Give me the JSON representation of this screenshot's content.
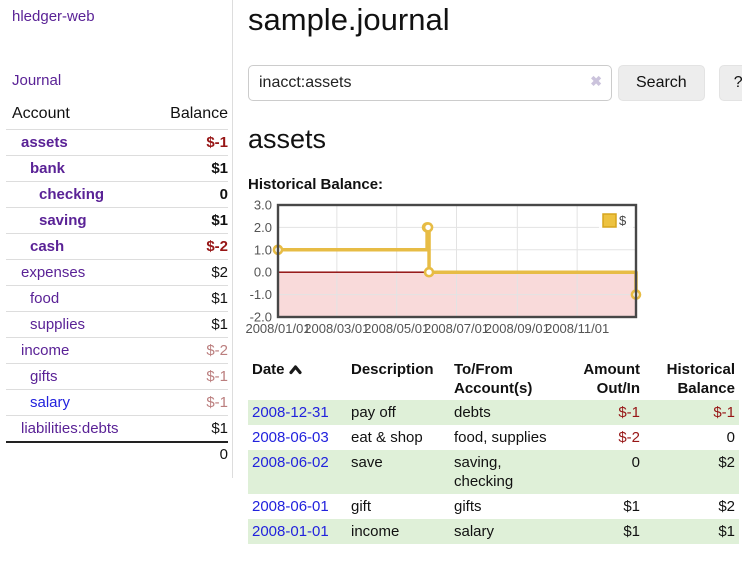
{
  "app": {
    "title": "hledger-web"
  },
  "sidebar": {
    "journal_link": "Journal",
    "table": {
      "account_header": "Account",
      "balance_header": "Balance",
      "rows": [
        {
          "account": "assets",
          "balance": "$-1",
          "depth": 1,
          "bold": true,
          "negative": true,
          "blue": false
        },
        {
          "account": "bank",
          "balance": "$1",
          "depth": 2,
          "bold": true,
          "negative": false,
          "blue": false
        },
        {
          "account": "checking",
          "balance": "0",
          "depth": 3,
          "bold": true,
          "negative": false,
          "blue": false
        },
        {
          "account": "saving",
          "balance": "$1",
          "depth": 3,
          "bold": true,
          "negative": false,
          "blue": false
        },
        {
          "account": "cash",
          "balance": "$-2",
          "depth": 2,
          "bold": true,
          "negative": true,
          "blue": false
        },
        {
          "account": "expenses",
          "balance": "$2",
          "depth": 1,
          "bold": false,
          "negative": false,
          "blue": false
        },
        {
          "account": "food",
          "balance": "$1",
          "depth": 2,
          "bold": false,
          "negative": false,
          "blue": false
        },
        {
          "account": "supplies",
          "balance": "$1",
          "depth": 2,
          "bold": false,
          "negative": false,
          "blue": false
        },
        {
          "account": "income",
          "balance": "$-2",
          "depth": 1,
          "bold": false,
          "negative": true,
          "blue": false
        },
        {
          "account": "gifts",
          "balance": "$-1",
          "depth": 2,
          "bold": false,
          "negative": true,
          "blue": false
        },
        {
          "account": "salary",
          "balance": "$-1",
          "depth": 2,
          "bold": false,
          "negative": true,
          "blue": true
        },
        {
          "account": "liabilities:debts",
          "balance": "$1",
          "depth": 1,
          "bold": false,
          "negative": false,
          "blue": false
        }
      ],
      "total": "0"
    }
  },
  "main": {
    "title": "sample.journal",
    "account_heading": "assets"
  },
  "search": {
    "value": "inacct:assets",
    "clear_icon": "✖",
    "search_button": "Search",
    "help_button": "?"
  },
  "chart_data": {
    "type": "line",
    "step": true,
    "title": "Historical Balance:",
    "x": [
      "2008-01-01",
      "2008-06-01",
      "2008-06-02",
      "2008-06-03",
      "2008-12-31"
    ],
    "values": [
      1,
      2,
      2,
      0,
      -1
    ],
    "x_range": [
      "2008-01-01",
      "2008-12-31"
    ],
    "x_ticks": [
      "2008/01/01",
      "2008/03/01",
      "2008/05/01",
      "2008/07/01",
      "2008/09/01",
      "2008/11/01"
    ],
    "y_ticks": [
      3,
      2,
      1,
      0,
      -1,
      -2
    ],
    "y_tick_labels": [
      "3.0",
      "2.0",
      "1.0",
      "0.0",
      "-1.0",
      "-2.0"
    ],
    "ylim": [
      -2,
      3
    ],
    "grid": true,
    "legend_position": "top-right",
    "legend": [
      {
        "label": "$",
        "color": "#edc240"
      }
    ],
    "line_color": "#e7bc45",
    "legend_box_border": "#d6a51e",
    "zero_line_color": "#8b0000",
    "negative_region_color": "#f9dada",
    "grid_color": "#e3e3e3",
    "border_color": "#474747"
  },
  "register": {
    "columns": [
      {
        "label": "Date",
        "align": "left",
        "sort": "asc"
      },
      {
        "label": "Description",
        "align": "left"
      },
      {
        "label": "To/From Account(s)",
        "align": "left"
      },
      {
        "label": "Amount Out/In",
        "align": "right"
      },
      {
        "label": "Historical Balance",
        "align": "right"
      }
    ],
    "rows": [
      {
        "date": "2008-12-31",
        "description": "pay off",
        "accounts": "debts",
        "amount": "$-1",
        "balance": "$-1"
      },
      {
        "date": "2008-06-03",
        "description": "eat & shop",
        "accounts": "food, supplies",
        "amount": "$-2",
        "balance": "0"
      },
      {
        "date": "2008-06-02",
        "description": "save",
        "accounts": "saving, checking",
        "amount": "0",
        "balance": "$2"
      },
      {
        "date": "2008-06-01",
        "description": "gift",
        "accounts": "gifts",
        "amount": "$1",
        "balance": "$2"
      },
      {
        "date": "2008-01-01",
        "description": "income",
        "accounts": "salary",
        "amount": "$1",
        "balance": "$1"
      }
    ]
  }
}
